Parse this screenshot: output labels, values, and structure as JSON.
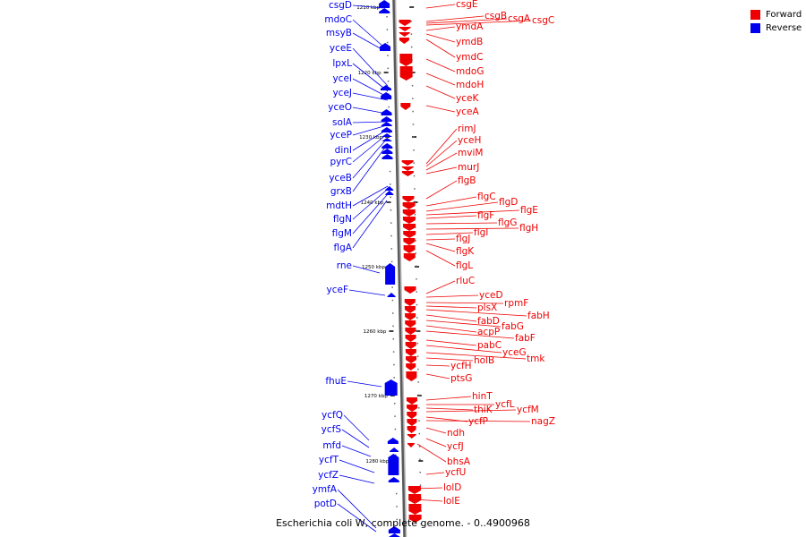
{
  "caption": "Escherichia coli W, complete genome. - 0..4900968",
  "legend": [
    {
      "label": "Forward",
      "color": "#ee0000"
    },
    {
      "label": "Reverse",
      "color": "#0000ee"
    }
  ],
  "colors": {
    "forward": "#ee0000",
    "reverse": "#0000ee",
    "backbone": "#888888"
  },
  "ticks": [
    "1210 kbp",
    "1220 kbp",
    "1230 kbp",
    "1240 kbp",
    "1250 kbp",
    "1260 kbp",
    "1270 kbp",
    "1280 kbp"
  ],
  "reverse_genes": [
    "csgD",
    "mdoC",
    "msyB",
    "yceE",
    "lpxL",
    "yceI",
    "yceJ",
    "yceO",
    "solA",
    "yceP",
    "dinI",
    "pyrC",
    "yceB",
    "grxB",
    "mdtH",
    "flgN",
    "flgM",
    "flgA",
    "rne",
    "yceF",
    "fhuE",
    "ycfQ",
    "ycfS",
    "mfd",
    "ycfT",
    "ycfZ",
    "ymfA",
    "potD"
  ],
  "forward_genes": [
    "csgE",
    "csgB",
    "csgA",
    "csgC",
    "ymdA",
    "ymdB",
    "ymdC",
    "mdoG",
    "mdoH",
    "yceK",
    "yceA",
    "rimJ",
    "yceH",
    "mviM",
    "murJ",
    "flgB",
    "flgC",
    "flgD",
    "flgE",
    "flgF",
    "flgG",
    "flgH",
    "flgI",
    "flgJ",
    "flgK",
    "flgL",
    "rluC",
    "yceD",
    "rpmF",
    "plsX",
    "fabH",
    "fabD",
    "fabG",
    "acpP",
    "fabF",
    "pabC",
    "yceG",
    "tmk",
    "holB",
    "ycfH",
    "ptsG",
    "hinT",
    "ycfL",
    "thiK",
    "ycfM",
    "ycfP",
    "nagZ",
    "ndh",
    "ycfJ",
    "bhsA",
    "ycfU",
    "lolD",
    "lolE"
  ]
}
